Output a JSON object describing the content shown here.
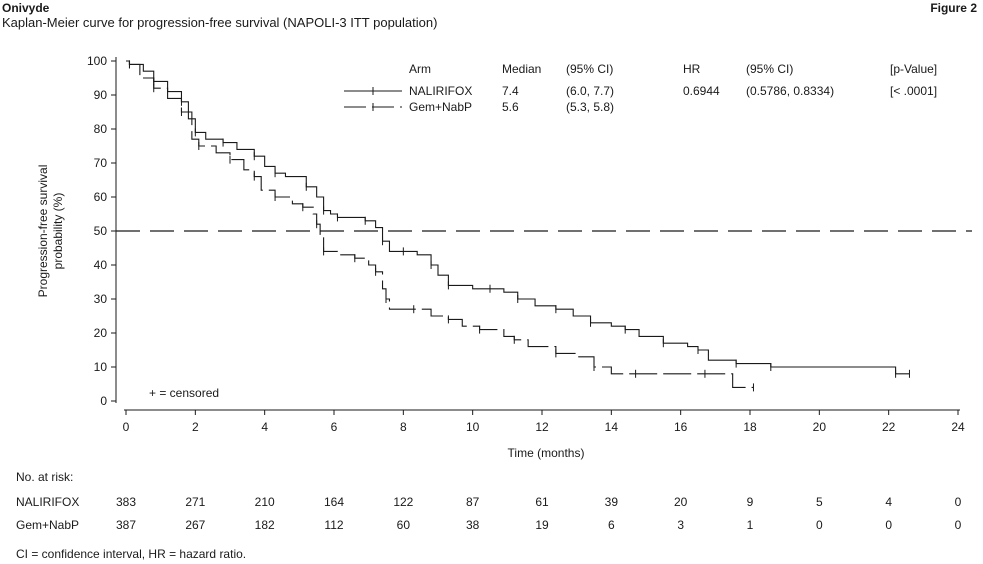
{
  "header": {
    "brand": "Onivyde",
    "figure_label": "Figure 2",
    "subtitle": "Kaplan-Meier curve for progression-free survival (NAPOLI-3 ITT population)"
  },
  "chart_data": {
    "type": "line",
    "subtype": "kaplan-meier",
    "xlabel": "Time (months)",
    "ylabel_lines": [
      "Progression-free survival",
      "probability (%)"
    ],
    "xlim": [
      0,
      24
    ],
    "ylim": [
      0,
      100
    ],
    "xticks": [
      0,
      2,
      4,
      6,
      8,
      10,
      12,
      14,
      16,
      18,
      20,
      22,
      24
    ],
    "yticks": [
      0,
      10,
      20,
      30,
      40,
      50,
      60,
      70,
      80,
      90,
      100
    ],
    "reference_line": {
      "y": 50,
      "style": "dashed"
    },
    "censored_legend": "+ = censored",
    "table": {
      "headers": [
        "Arm",
        "Median",
        "(95% CI)",
        "HR",
        "(95% CI)",
        "[p-Value]"
      ],
      "rows": [
        {
          "arm": "NALIRIFOX",
          "median": "7.4",
          "ci": "(6.0, 7.7)",
          "hr": "0.6944",
          "hr_ci": "(0.5786, 0.8334)",
          "p": "[< .0001]"
        },
        {
          "arm": "Gem+NabP",
          "median": "5.6",
          "ci": "(5.3, 5.8)",
          "hr": "",
          "hr_ci": "",
          "p": ""
        }
      ]
    },
    "series": [
      {
        "name": "NALIRIFOX",
        "line_style": "solid",
        "x": [
          0,
          0.1,
          0.5,
          0.8,
          1.2,
          1.6,
          1.8,
          2.0,
          2.3,
          2.8,
          3.2,
          3.7,
          4.0,
          4.3,
          4.6,
          5.2,
          5.5,
          5.7,
          5.9,
          6.1,
          6.4,
          6.9,
          7.2,
          7.4,
          7.6,
          8.0,
          8.4,
          8.8,
          9.0,
          9.3,
          10.0,
          10.5,
          10.9,
          11.3,
          11.8,
          12.4,
          12.9,
          13.4,
          14.0,
          14.4,
          14.8,
          15.5,
          16.2,
          16.5,
          16.8,
          17.6,
          18.1,
          18.6,
          20.3,
          22.2,
          22.4,
          22.6
        ],
        "y": [
          100,
          99,
          97,
          94,
          91,
          88,
          83,
          79,
          77,
          76,
          74,
          72,
          69,
          67,
          66,
          63,
          60,
          56,
          55,
          54,
          54,
          53,
          51,
          47,
          44,
          44,
          43,
          40,
          37,
          34,
          33,
          33,
          32,
          30,
          28,
          27,
          25,
          23,
          22,
          21,
          19,
          17,
          16,
          15,
          12,
          11,
          11,
          10,
          10,
          8,
          8,
          8
        ]
      },
      {
        "name": "Gem+NabP",
        "line_style": "dashed",
        "x": [
          0,
          0.1,
          0.4,
          0.8,
          1.2,
          1.6,
          1.9,
          2.1,
          2.6,
          3.0,
          3.4,
          3.7,
          3.9,
          4.3,
          4.8,
          5.1,
          5.4,
          5.5,
          5.6,
          5.7,
          6.1,
          6.6,
          7.0,
          7.2,
          7.4,
          7.5,
          7.6,
          8.3,
          8.8,
          9.3,
          9.7,
          10.2,
          10.9,
          11.2,
          11.6,
          12.4,
          13.0,
          13.5,
          14.0,
          14.7,
          16.0,
          16.7,
          17.5,
          18.1
        ],
        "y": [
          100,
          99,
          95,
          92,
          89,
          85,
          77,
          75,
          73,
          71,
          68,
          66,
          62,
          60,
          58,
          57,
          55,
          52,
          48,
          44,
          43,
          42,
          40,
          38,
          33,
          30,
          27,
          27,
          25,
          24,
          22,
          21,
          19,
          18,
          16,
          14,
          13,
          10,
          8,
          8,
          8,
          8,
          4,
          4
        ]
      }
    ],
    "risk_table": {
      "title": "No. at risk:",
      "timepoints": [
        0,
        2,
        4,
        6,
        8,
        10,
        12,
        14,
        16,
        18,
        20,
        22,
        24
      ],
      "rows": [
        {
          "arm": "NALIRIFOX",
          "values": [
            "383",
            "271",
            "210",
            "164",
            "122",
            "87",
            "61",
            "39",
            "20",
            "9",
            "5",
            "4",
            "0"
          ]
        },
        {
          "arm": "Gem+NabP",
          "values": [
            "387",
            "267",
            "182",
            "112",
            "60",
            "38",
            "19",
            "6",
            "3",
            "1",
            "0",
            "0",
            "0"
          ]
        }
      ]
    },
    "footnote": "CI = confidence interval, HR = hazard ratio."
  }
}
